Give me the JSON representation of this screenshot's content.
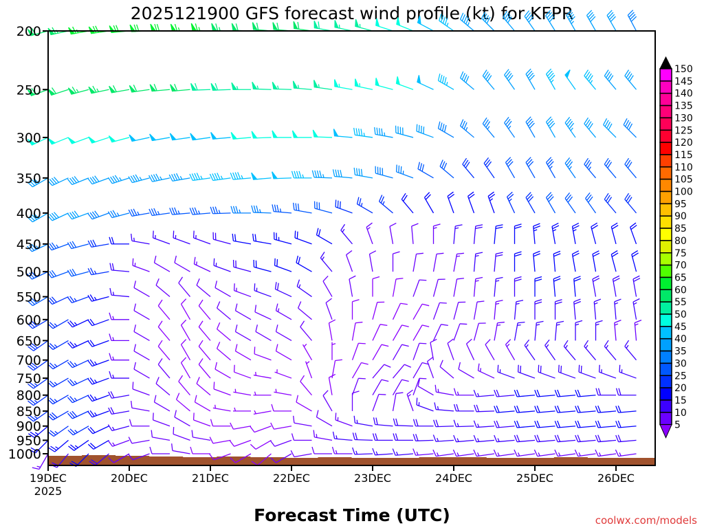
{
  "chart_data": {
    "type": "wind-barb",
    "title": "2025121900 GFS forecast wind profile (kt) for KFPR",
    "xlabel": "Forecast Time (UTC)",
    "credit": "coolwx.com/models",
    "y_ticks": [
      200,
      250,
      300,
      350,
      400,
      450,
      500,
      550,
      600,
      650,
      700,
      750,
      800,
      850,
      900,
      950,
      1000
    ],
    "y_range_hpa": [
      200,
      1000
    ],
    "y_scale": "log-pressure",
    "x_ticks": [
      {
        "label": "19DEC",
        "sub": "2025",
        "hour": 0
      },
      {
        "label": "20DEC",
        "hour": 24
      },
      {
        "label": "21DEC",
        "hour": 48
      },
      {
        "label": "22DEC",
        "hour": 72
      },
      {
        "label": "23DEC",
        "hour": 96
      },
      {
        "label": "24DEC",
        "hour": 120
      },
      {
        "label": "25DEC",
        "hour": 144
      },
      {
        "label": "26DEC",
        "hour": 168
      }
    ],
    "x_range_hours": [
      0,
      180
    ],
    "hours_step": 6,
    "levels": [
      200,
      250,
      300,
      350,
      400,
      450,
      500,
      550,
      600,
      650,
      700,
      750,
      800,
      850,
      900,
      950,
      1000
    ],
    "speed_kt": [
      [
        62,
        64,
        66,
        68,
        68,
        68,
        68,
        66,
        65,
        64,
        62,
        62,
        60,
        60,
        58,
        56,
        55,
        52,
        50,
        48,
        46,
        44,
        42,
        40,
        40,
        42,
        44,
        42,
        40,
        38,
        36
      ],
      [
        60,
        62,
        64,
        64,
        62,
        62,
        60,
        60,
        58,
        58,
        56,
        56,
        56,
        55,
        55,
        54,
        54,
        52,
        50,
        48,
        45,
        42,
        40,
        40,
        42,
        46,
        48,
        45,
        42,
        40,
        38
      ],
      [
        50,
        52,
        52,
        50,
        50,
        48,
        48,
        48,
        48,
        48,
        50,
        50,
        50,
        50,
        50,
        48,
        46,
        44,
        42,
        40,
        38,
        36,
        35,
        35,
        38,
        42,
        44,
        42,
        40,
        38,
        35
      ],
      [
        40,
        42,
        42,
        42,
        44,
        44,
        44,
        44,
        46,
        46,
        46,
        48,
        48,
        46,
        44,
        42,
        40,
        38,
        35,
        32,
        30,
        28,
        28,
        30,
        32,
        34,
        35,
        34,
        32,
        30,
        30
      ],
      [
        40,
        42,
        40,
        38,
        36,
        34,
        34,
        34,
        34,
        34,
        36,
        36,
        34,
        32,
        30,
        28,
        26,
        25,
        22,
        20,
        20,
        22,
        24,
        26,
        28,
        30,
        30,
        30,
        28,
        28,
        26
      ],
      [
        35,
        34,
        32,
        28,
        20,
        16,
        15,
        15,
        16,
        18,
        20,
        22,
        24,
        22,
        20,
        16,
        14,
        12,
        12,
        14,
        16,
        18,
        20,
        22,
        24,
        24,
        24,
        22,
        22,
        20,
        20
      ],
      [
        32,
        30,
        30,
        26,
        18,
        14,
        12,
        12,
        14,
        16,
        18,
        20,
        22,
        20,
        16,
        12,
        10,
        10,
        10,
        12,
        14,
        16,
        18,
        20,
        22,
        22,
        22,
        20,
        20,
        20,
        18
      ],
      [
        30,
        28,
        26,
        24,
        16,
        12,
        10,
        10,
        10,
        12,
        14,
        16,
        18,
        16,
        12,
        10,
        8,
        8,
        10,
        10,
        12,
        14,
        16,
        18,
        20,
        20,
        20,
        18,
        18,
        18,
        16
      ],
      [
        28,
        26,
        24,
        22,
        14,
        10,
        8,
        8,
        8,
        10,
        12,
        12,
        14,
        12,
        10,
        8,
        8,
        8,
        8,
        10,
        12,
        12,
        14,
        16,
        18,
        18,
        18,
        16,
        16,
        16,
        14
      ],
      [
        28,
        26,
        24,
        22,
        14,
        10,
        8,
        8,
        8,
        8,
        10,
        10,
        10,
        10,
        8,
        8,
        8,
        8,
        8,
        10,
        10,
        12,
        14,
        16,
        16,
        16,
        16,
        16,
        14,
        14,
        14
      ],
      [
        28,
        26,
        26,
        24,
        14,
        10,
        8,
        8,
        8,
        8,
        8,
        8,
        8,
        6,
        6,
        8,
        8,
        10,
        10,
        10,
        10,
        12,
        12,
        14,
        16,
        16,
        16,
        16,
        16,
        16,
        14
      ],
      [
        26,
        26,
        26,
        24,
        16,
        10,
        10,
        8,
        8,
        8,
        8,
        6,
        6,
        6,
        8,
        8,
        10,
        10,
        10,
        10,
        12,
        12,
        14,
        16,
        18,
        18,
        18,
        18,
        16,
        16,
        16
      ],
      [
        26,
        26,
        26,
        24,
        18,
        12,
        10,
        8,
        8,
        8,
        6,
        6,
        6,
        8,
        8,
        10,
        10,
        12,
        12,
        12,
        14,
        14,
        16,
        18,
        20,
        20,
        20,
        20,
        18,
        18,
        18
      ],
      [
        26,
        28,
        28,
        24,
        18,
        12,
        10,
        8,
        8,
        6,
        6,
        6,
        8,
        8,
        10,
        10,
        10,
        12,
        14,
        16,
        16,
        18,
        18,
        20,
        22,
        22,
        22,
        20,
        20,
        20,
        20
      ],
      [
        24,
        26,
        26,
        22,
        16,
        12,
        10,
        10,
        8,
        8,
        8,
        8,
        8,
        10,
        12,
        14,
        16,
        18,
        18,
        18,
        18,
        16,
        16,
        18,
        20,
        20,
        20,
        20,
        20,
        20,
        20
      ],
      [
        20,
        24,
        24,
        20,
        14,
        12,
        10,
        10,
        10,
        8,
        8,
        8,
        10,
        12,
        14,
        16,
        18,
        18,
        18,
        18,
        16,
        16,
        16,
        16,
        18,
        18,
        18,
        18,
        18,
        18,
        18
      ],
      [
        14,
        18,
        20,
        18,
        12,
        10,
        10,
        10,
        8,
        8,
        8,
        8,
        10,
        10,
        12,
        14,
        16,
        16,
        16,
        14,
        14,
        14,
        14,
        14,
        14,
        14,
        14,
        14,
        14,
        14,
        14
      ]
    ],
    "direction_deg": [
      [
        255,
        258,
        260,
        262,
        265,
        268,
        270,
        270,
        272,
        272,
        272,
        275,
        275,
        278,
        280,
        282,
        285,
        288,
        292,
        298,
        305,
        310,
        315,
        320,
        325,
        328,
        330,
        330,
        330,
        332,
        335
      ],
      [
        250,
        252,
        255,
        258,
        260,
        262,
        265,
        265,
        268,
        268,
        270,
        272,
        272,
        275,
        278,
        280,
        282,
        285,
        290,
        295,
        300,
        310,
        320,
        325,
        330,
        330,
        325,
        320,
        320,
        320,
        320
      ],
      [
        245,
        248,
        250,
        252,
        255,
        258,
        260,
        262,
        262,
        265,
        265,
        268,
        270,
        270,
        272,
        275,
        278,
        280,
        285,
        290,
        300,
        310,
        320,
        325,
        330,
        330,
        325,
        320,
        315,
        315,
        315
      ],
      [
        240,
        245,
        248,
        250,
        252,
        255,
        258,
        260,
        262,
        262,
        265,
        265,
        268,
        270,
        272,
        275,
        280,
        285,
        290,
        300,
        310,
        320,
        325,
        330,
        330,
        330,
        325,
        320,
        320,
        320,
        320
      ],
      [
        240,
        245,
        250,
        250,
        255,
        260,
        262,
        265,
        265,
        268,
        270,
        272,
        275,
        280,
        285,
        290,
        300,
        310,
        320,
        330,
        340,
        340,
        340,
        335,
        330,
        330,
        325,
        325,
        320,
        320,
        320
      ],
      [
        245,
        250,
        255,
        260,
        270,
        280,
        290,
        290,
        290,
        285,
        280,
        280,
        285,
        290,
        300,
        320,
        340,
        350,
        355,
        0,
        5,
        5,
        5,
        0,
        355,
        350,
        350,
        345,
        345,
        340,
        340
      ],
      [
        245,
        250,
        255,
        260,
        275,
        290,
        300,
        300,
        295,
        290,
        285,
        285,
        290,
        300,
        320,
        340,
        350,
        0,
        10,
        10,
        10,
        5,
        5,
        0,
        355,
        355,
        350,
        350,
        345,
        345,
        345
      ],
      [
        240,
        245,
        250,
        255,
        275,
        300,
        310,
        320,
        310,
        300,
        290,
        290,
        295,
        305,
        330,
        350,
        0,
        10,
        20,
        15,
        10,
        5,
        5,
        0,
        0,
        355,
        355,
        350,
        350,
        350,
        350
      ],
      [
        240,
        240,
        245,
        250,
        270,
        300,
        320,
        330,
        320,
        310,
        300,
        295,
        300,
        310,
        340,
        0,
        15,
        25,
        30,
        20,
        15,
        10,
        5,
        5,
        0,
        0,
        355,
        355,
        355,
        350,
        350
      ],
      [
        235,
        240,
        245,
        250,
        270,
        300,
        320,
        330,
        320,
        310,
        300,
        300,
        300,
        320,
        350,
        10,
        25,
        30,
        30,
        25,
        20,
        15,
        10,
        10,
        5,
        5,
        0,
        0,
        355,
        355,
        350
      ],
      [
        235,
        240,
        245,
        250,
        270,
        300,
        320,
        330,
        320,
        310,
        300,
        290,
        300,
        330,
        0,
        20,
        30,
        30,
        20,
        350,
        340,
        335,
        330,
        330,
        325,
        325,
        320,
        320,
        320,
        320,
        320
      ],
      [
        235,
        240,
        245,
        250,
        270,
        300,
        320,
        330,
        320,
        300,
        290,
        280,
        290,
        340,
        10,
        30,
        40,
        40,
        30,
        340,
        310,
        300,
        295,
        290,
        290,
        290,
        290,
        290,
        290,
        290,
        290
      ],
      [
        235,
        240,
        245,
        250,
        260,
        290,
        310,
        320,
        310,
        290,
        280,
        270,
        280,
        320,
        350,
        20,
        30,
        30,
        20,
        300,
        280,
        270,
        265,
        265,
        265,
        265,
        265,
        265,
        270,
        270,
        270
      ],
      [
        235,
        240,
        245,
        250,
        260,
        280,
        300,
        310,
        300,
        280,
        270,
        260,
        270,
        300,
        330,
        0,
        20,
        10,
        340,
        290,
        275,
        270,
        268,
        265,
        265,
        265,
        265,
        265,
        265,
        265,
        265
      ],
      [
        230,
        235,
        240,
        245,
        255,
        270,
        290,
        300,
        290,
        270,
        260,
        250,
        260,
        280,
        300,
        290,
        280,
        275,
        272,
        270,
        268,
        268,
        266,
        265,
        265,
        265,
        265,
        265,
        265,
        265,
        265
      ],
      [
        225,
        230,
        235,
        240,
        250,
        260,
        280,
        290,
        280,
        260,
        250,
        240,
        250,
        270,
        280,
        275,
        272,
        270,
        270,
        268,
        266,
        265,
        265,
        265,
        265,
        265,
        265,
        265,
        265,
        265,
        265
      ],
      [
        210,
        220,
        225,
        230,
        240,
        250,
        270,
        280,
        270,
        250,
        240,
        230,
        240,
        260,
        270,
        270,
        268,
        266,
        265,
        265,
        262,
        262,
        262,
        262,
        262,
        262,
        262,
        262,
        262,
        262,
        262
      ]
    ],
    "colorbar": {
      "labels": [
        5,
        10,
        15,
        20,
        25,
        30,
        35,
        40,
        45,
        50,
        55,
        60,
        65,
        70,
        75,
        80,
        85,
        90,
        95,
        100,
        105,
        110,
        115,
        120,
        125,
        130,
        135,
        140,
        145,
        150
      ],
      "colors": [
        "#8a00ff",
        "#6a00ff",
        "#3c00ff",
        "#0000ff",
        "#0030ff",
        "#0058ff",
        "#0080ff",
        "#00a0ff",
        "#00c0ff",
        "#00ffe0",
        "#00f0a0",
        "#00e868",
        "#00f030",
        "#50ff00",
        "#a8ff00",
        "#e0f000",
        "#ffff00",
        "#ffe000",
        "#ffc000",
        "#ffa000",
        "#ff8800",
        "#ff6a00",
        "#ff4000",
        "#ff0000",
        "#ff0030",
        "#ff0058",
        "#ff0078",
        "#ff0098",
        "#ff00c0",
        "#ff00ff"
      ],
      "under_color": "#8a00ff",
      "over_color": "#000000"
    },
    "terrain_color": "#a0522d"
  }
}
